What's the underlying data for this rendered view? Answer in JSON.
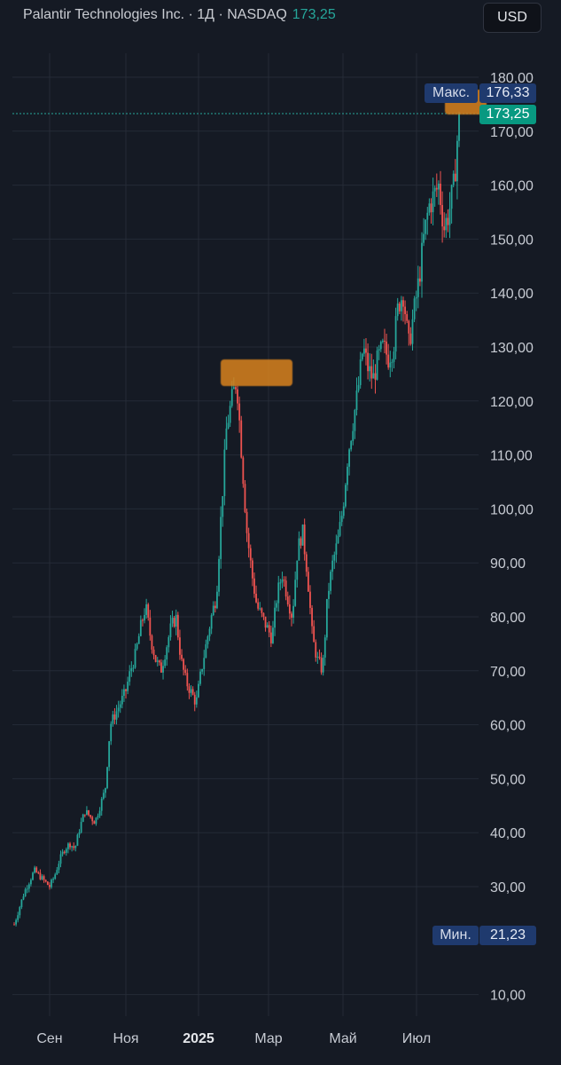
{
  "header": {
    "title": "Palantir Technologies Inc. · 1Д · NASDAQ",
    "last_price": "173,25"
  },
  "currency_button": "USD",
  "price_tags": {
    "max_label": "Макс.",
    "max_value": "176,33",
    "last_value": "173,25",
    "min_label": "Мин.",
    "min_value": "21,23"
  },
  "colors": {
    "background": "#151a24",
    "up": "#26a69a",
    "down": "#ef5350",
    "grid": "#252b36",
    "tag_blue": "#1f3a6e",
    "tag_green": "#089981",
    "highlight": "#d9821e"
  },
  "chart_data": {
    "type": "candlestick",
    "title": "Palantir Technologies Inc. · 1Д · NASDAQ",
    "interval": "1Д",
    "currency": "USD",
    "grid": true,
    "ylim": [
      3,
      182
    ],
    "y_ticks": [
      "180,00",
      "170,00",
      "160,00",
      "150,00",
      "140,00",
      "130,00",
      "120,00",
      "110,00",
      "100,00",
      "90,00",
      "80,00",
      "70,00",
      "60,00",
      "50,00",
      "40,00",
      "30,00",
      "10,00"
    ],
    "x_ticks": [
      "Сен",
      "Ноя",
      "2025",
      "Мар",
      "Май",
      "Июл"
    ],
    "x_bold": [
      "2025"
    ],
    "last_price": 173.25,
    "max": 176.33,
    "min": 21.23,
    "approx_closes": [
      23,
      26,
      29,
      31,
      33,
      32,
      31,
      30,
      32,
      35,
      37,
      38,
      37,
      41,
      44,
      43,
      42,
      45,
      48,
      60,
      62,
      64,
      66,
      70,
      73,
      78,
      82,
      76,
      72,
      70,
      74,
      78,
      80,
      72,
      68,
      66,
      64,
      70,
      75,
      80,
      84,
      100,
      115,
      120,
      124,
      110,
      96,
      88,
      82,
      80,
      78,
      76,
      84,
      88,
      84,
      80,
      92,
      96,
      88,
      76,
      72,
      70,
      84,
      90,
      94,
      100,
      110,
      116,
      122,
      130,
      126,
      124,
      128,
      130,
      128,
      130,
      138,
      140,
      130,
      136,
      142,
      150,
      156,
      158,
      160,
      152,
      155,
      160,
      173.25
    ]
  }
}
